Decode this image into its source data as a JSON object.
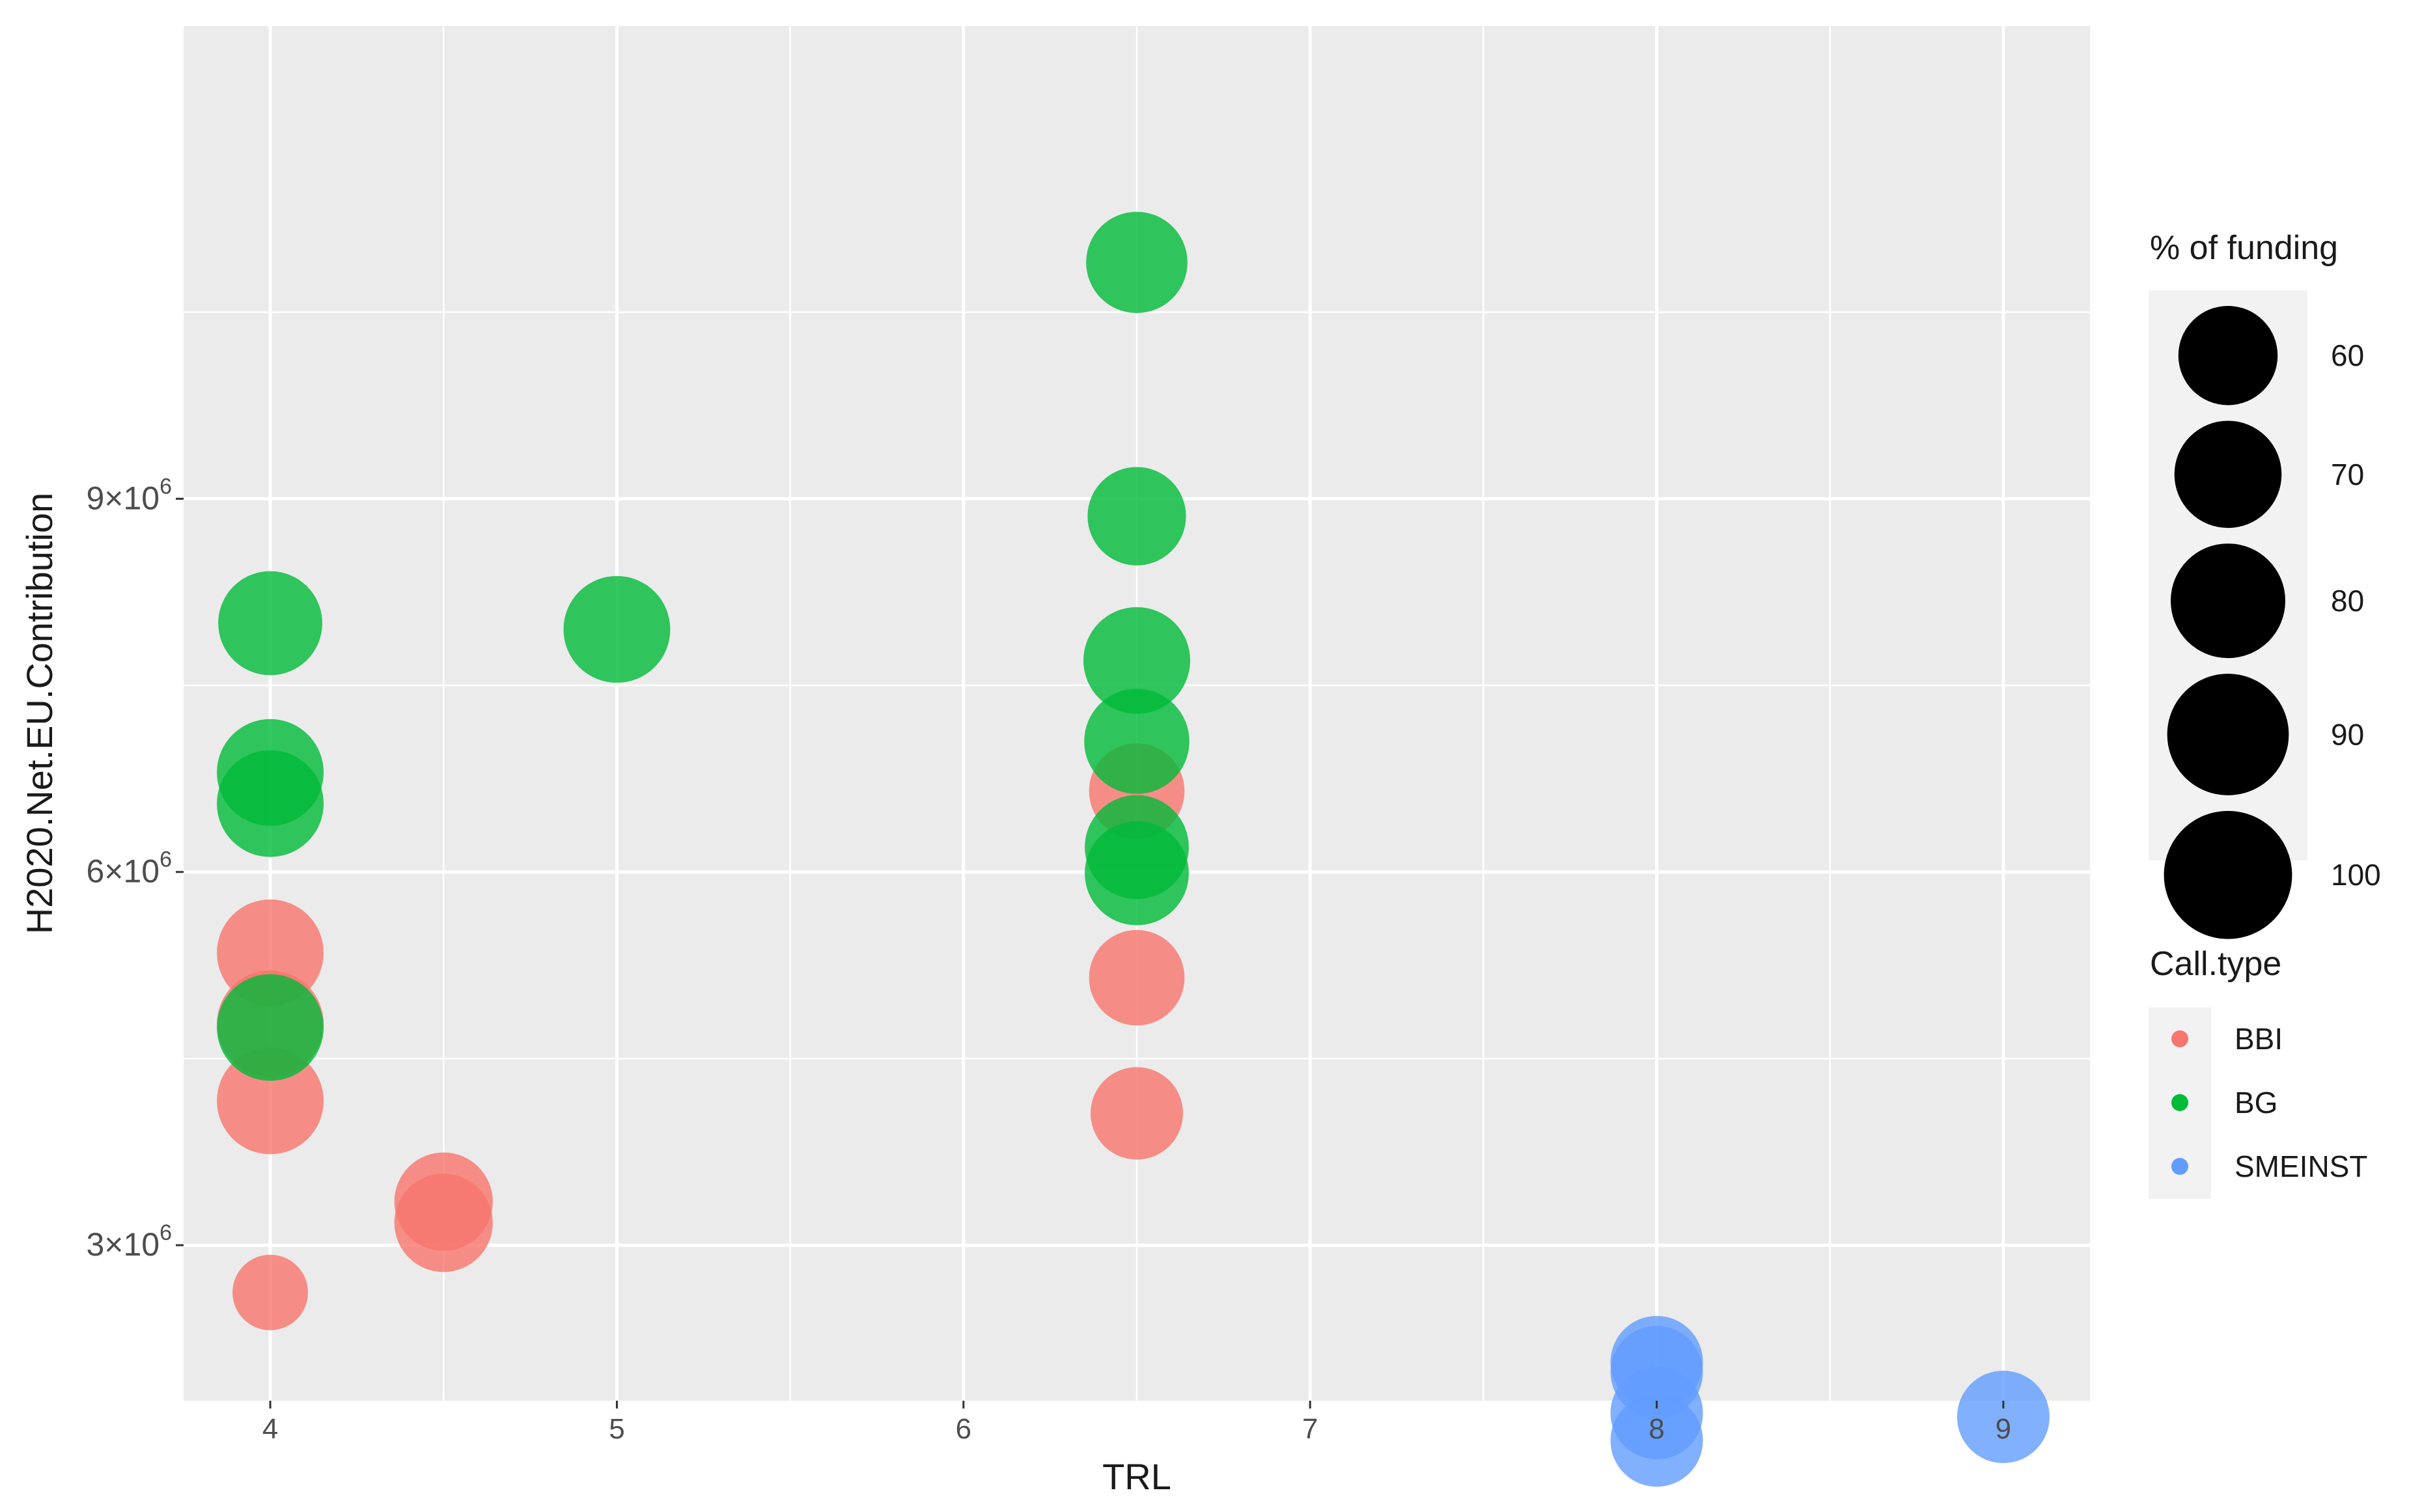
{
  "chart_data": {
    "type": "scatter",
    "title": "",
    "xlabel": "TRL",
    "ylabel": "H2020.Net.EU.Contribution",
    "xlim": [
      3.75,
      9.25
    ],
    "ylim": [
      1750000,
      12800000
    ],
    "x_ticks": [
      4,
      5,
      6,
      7,
      8,
      9
    ],
    "x_tick_labels": [
      "4",
      "5",
      "6",
      "7",
      "8",
      "9"
    ],
    "y_ticks": [
      3000000,
      6000000,
      9000000
    ],
    "y_tick_labels": [
      {
        "base": "3×10",
        "exp": "6"
      },
      {
        "base": "6×10",
        "exp": "6"
      },
      {
        "base": "9×10",
        "exp": "6"
      }
    ],
    "grid": true,
    "size_legend": {
      "title": "% of funding",
      "entries": [
        {
          "label": "60",
          "value": 60
        },
        {
          "label": "70",
          "value": 70
        },
        {
          "label": "80",
          "value": 80
        },
        {
          "label": "90",
          "value": 90
        },
        {
          "label": "100",
          "value": 100
        }
      ]
    },
    "color_legend": {
      "title": "Call.type",
      "entries": [
        {
          "label": "BBI",
          "color": "#F8766D"
        },
        {
          "label": "BG",
          "color": "#00BA38"
        },
        {
          "label": "SMEINST",
          "color": "#619CFF"
        }
      ]
    },
    "series": [
      {
        "name": "BBI",
        "color": "#F8766D",
        "points": [
          {
            "x": 4,
            "y": 2620000,
            "pct": 50
          },
          {
            "x": 4,
            "y": 4160000,
            "pct": 100
          },
          {
            "x": 4,
            "y": 4780000,
            "pct": 100
          },
          {
            "x": 4,
            "y": 5350000,
            "pct": 100
          },
          {
            "x": 4.5,
            "y": 3180000,
            "pct": 85
          },
          {
            "x": 4.5,
            "y": 3350000,
            "pct": 85
          },
          {
            "x": 6.5,
            "y": 4060000,
            "pct": 75
          },
          {
            "x": 6.5,
            "y": 5150000,
            "pct": 80
          },
          {
            "x": 6.5,
            "y": 6650000,
            "pct": 80
          }
        ]
      },
      {
        "name": "BG",
        "color": "#00BA38",
        "points": [
          {
            "x": 4,
            "y": 4750000,
            "pct": 100
          },
          {
            "x": 4,
            "y": 6550000,
            "pct": 100
          },
          {
            "x": 4,
            "y": 6800000,
            "pct": 100
          },
          {
            "x": 4,
            "y": 8000000,
            "pct": 95
          },
          {
            "x": 5,
            "y": 7950000,
            "pct": 100
          },
          {
            "x": 6.5,
            "y": 5990000,
            "pct": 95
          },
          {
            "x": 6.5,
            "y": 6200000,
            "pct": 95
          },
          {
            "x": 6.5,
            "y": 7050000,
            "pct": 97
          },
          {
            "x": 6.5,
            "y": 7700000,
            "pct": 100
          },
          {
            "x": 6.5,
            "y": 8860000,
            "pct": 85
          },
          {
            "x": 6.5,
            "y": 10900000,
            "pct": 90
          }
        ]
      },
      {
        "name": "SMEINST",
        "color": "#619CFF",
        "points": [
          {
            "x": 8,
            "y": 2060000,
            "pct": 75
          },
          {
            "x": 8,
            "y": 1650000,
            "pct": 75
          },
          {
            "x": 8,
            "y": 1980000,
            "pct": 75
          },
          {
            "x": 8,
            "y": 1430000,
            "pct": 75
          },
          {
            "x": 9,
            "y": 1620000,
            "pct": 75
          }
        ]
      }
    ]
  }
}
